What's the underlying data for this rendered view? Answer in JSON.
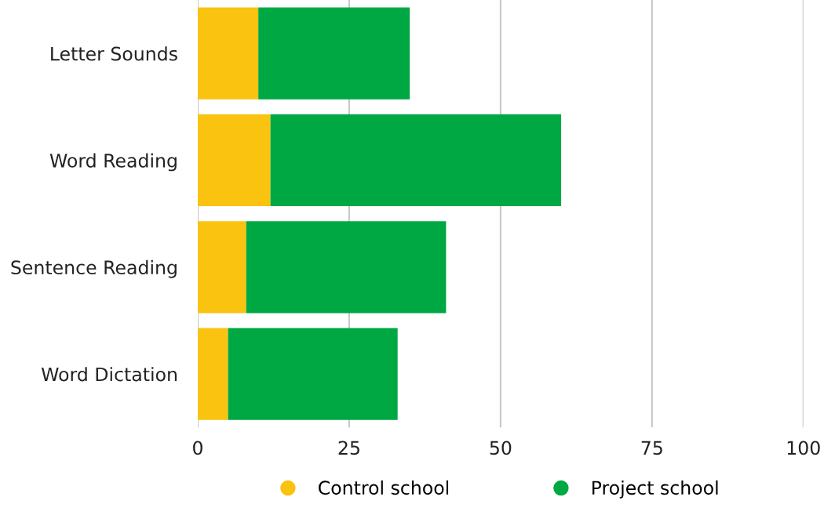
{
  "chart_data": {
    "type": "bar",
    "orientation": "horizontal",
    "stacked": true,
    "categories": [
      "Letter Sounds",
      "Word Reading",
      "Sentence Reading",
      "Word Dictation"
    ],
    "series": [
      {
        "name": "Control school",
        "color": "#f9c30f",
        "values": [
          10,
          12,
          8,
          5
        ]
      },
      {
        "name": "Project school",
        "color": "#00a843",
        "values": [
          25,
          48,
          33,
          28
        ]
      }
    ],
    "xlim": [
      0,
      100
    ],
    "xticks": [
      0,
      25,
      50,
      75,
      100
    ],
    "grid": "x",
    "legend": "bottom"
  }
}
